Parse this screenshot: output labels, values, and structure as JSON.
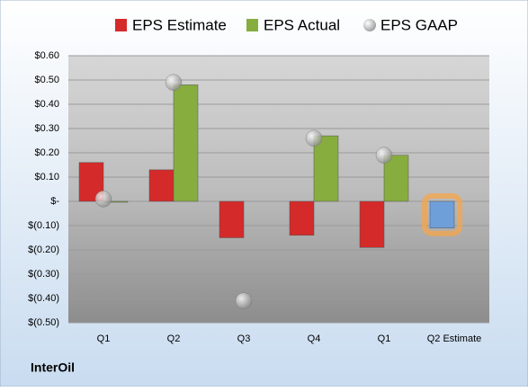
{
  "chart_data": {
    "type": "bar",
    "footer": "InterOil",
    "categories": [
      "Q1",
      "Q2",
      "Q3",
      "Q4",
      "Q1",
      "Q2 Estimate"
    ],
    "series": [
      {
        "name": "EPS Estimate",
        "color": "#d42a2a",
        "values": [
          0.16,
          0.13,
          -0.15,
          -0.14,
          -0.19,
          -0.11
        ],
        "colors": [
          "#d42a2a",
          "#d42a2a",
          "#d42a2a",
          "#d42a2a",
          "#d42a2a",
          "#6f9fd8"
        ]
      },
      {
        "name": "EPS Actual",
        "color": "#86ad3e",
        "values": [
          0,
          0.48,
          null,
          0.27,
          0.19,
          null
        ]
      },
      {
        "name": "EPS GAAP",
        "color": "#b8b8b8",
        "mark": "circle",
        "values": [
          0.01,
          0.49,
          -0.41,
          0.26,
          0.19,
          null
        ]
      }
    ],
    "ylim": [
      -0.5,
      0.6
    ],
    "yticks": [
      {
        "value": 0.6,
        "label": "$0.60"
      },
      {
        "value": 0.5,
        "label": "$0.50"
      },
      {
        "value": 0.4,
        "label": "$0.40"
      },
      {
        "value": 0.3,
        "label": "$0.30"
      },
      {
        "value": 0.2,
        "label": "$0.20"
      },
      {
        "value": 0.1,
        "label": "$0.10"
      },
      {
        "value": 0,
        "label": "$-"
      },
      {
        "value": -0.1,
        "label": "$(0.10)"
      },
      {
        "value": -0.2,
        "label": "$(0.20)"
      },
      {
        "value": -0.3,
        "label": "$(0.30)"
      },
      {
        "value": -0.4,
        "label": "$(0.40)"
      },
      {
        "value": -0.5,
        "label": "$(0.50)"
      }
    ],
    "grid": true,
    "legend": "top"
  }
}
